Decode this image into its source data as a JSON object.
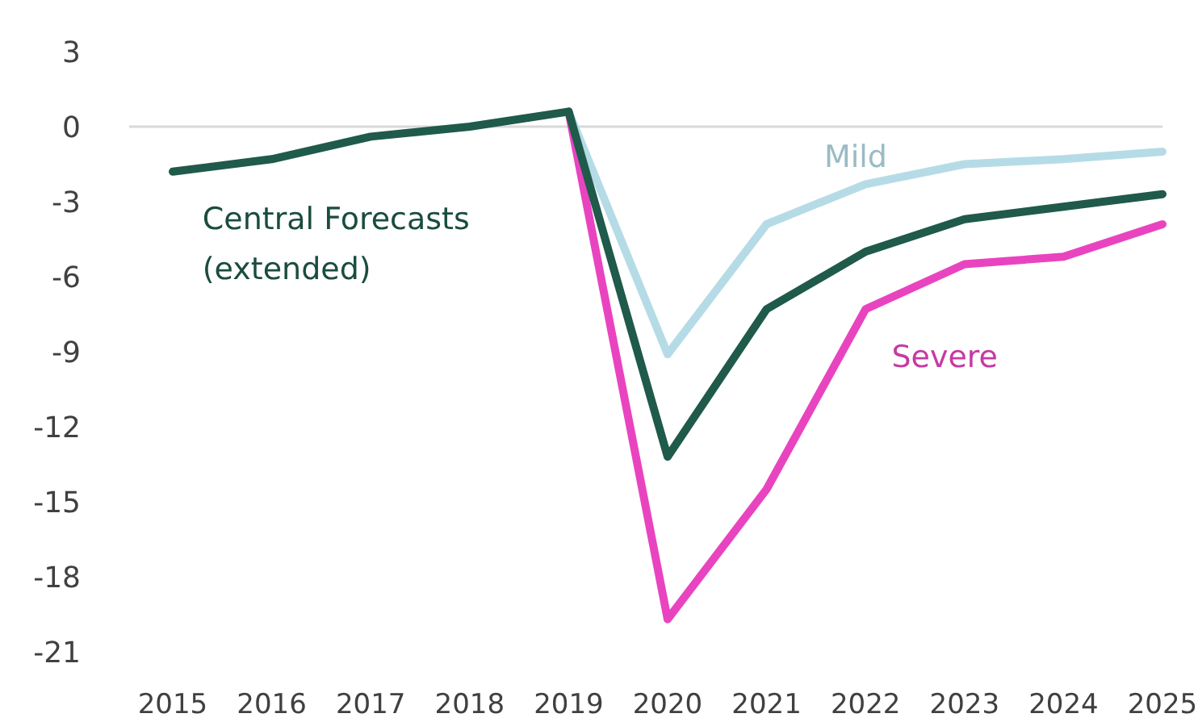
{
  "chart_data": {
    "type": "line",
    "x": [
      2015,
      2016,
      2017,
      2018,
      2019,
      2020,
      2021,
      2022,
      2023,
      2024,
      2025
    ],
    "xlim": [
      2015,
      2025
    ],
    "xticks": [
      2015,
      2016,
      2017,
      2018,
      2019,
      2020,
      2021,
      2022,
      2023,
      2024,
      2025
    ],
    "ylim": [
      -21,
      3
    ],
    "yticks": [
      3,
      0,
      -3,
      -6,
      -9,
      -12,
      -15,
      -18,
      -21
    ],
    "grid": false,
    "legend": false,
    "line_style": "solid",
    "marker": "none",
    "ref_lines": [
      {
        "axis": "y",
        "value": 0,
        "color": "#d9d9d9"
      }
    ],
    "series": [
      {
        "name": "Mild",
        "color": "#b5dce6",
        "x": [
          2019,
          2020,
          2021,
          2022,
          2023,
          2024,
          2025
        ],
        "values": [
          0.6,
          -9.1,
          -3.9,
          -2.3,
          -1.5,
          -1.3,
          -1.0
        ]
      },
      {
        "name": "Severe",
        "color": "#e944c0",
        "x": [
          2019,
          2020,
          2021,
          2022,
          2023,
          2024,
          2025
        ],
        "values": [
          0.6,
          -19.7,
          -14.5,
          -7.3,
          -5.5,
          -5.2,
          -3.9
        ]
      },
      {
        "name": "Central Forecasts (extended)",
        "color": "#1f5a4a",
        "values": [
          -1.8,
          -1.3,
          -0.4,
          0,
          0.6,
          -13.2,
          -7.3,
          -5.0,
          -3.7,
          -3.2,
          -2.7
        ]
      }
    ]
  }
}
